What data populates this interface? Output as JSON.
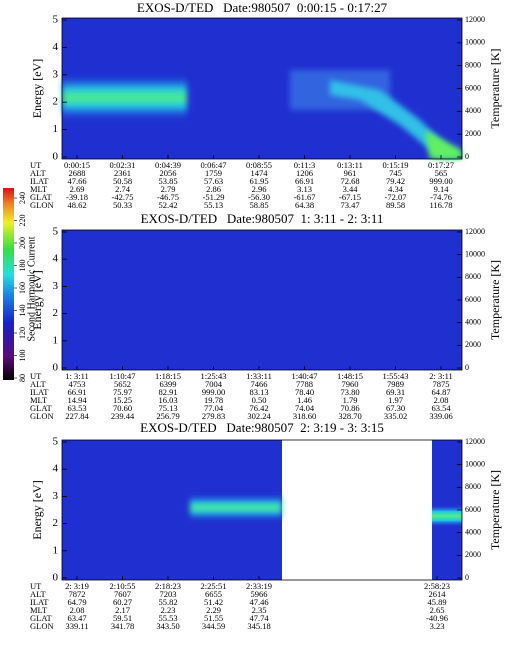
{
  "chart_data": [
    {
      "type": "spectrogram",
      "title": "EXOS-D/TED   Date:980507  0:00:15 - 0:17:27",
      "ylabel": "Energy [eV]",
      "y2label": "Temperature [K]",
      "ylim": [
        0,
        5
      ],
      "yticks": [
        0,
        1,
        2,
        3,
        4,
        5
      ],
      "y2lim": [
        0,
        12000
      ],
      "y2ticks": [
        0,
        2000,
        4000,
        6000,
        8000,
        10000,
        12000
      ],
      "table": {
        "row_labels": [
          "UT",
          "ALT",
          "ILAT",
          "MLT",
          "GLAT",
          "GLON"
        ],
        "columns": [
          [
            "0:00:15",
            "2688",
            "47.66",
            "2.69",
            "-39.18",
            "48.62"
          ],
          [
            "0:02:31",
            "2361",
            "50.58",
            "2.74",
            "-42.75",
            "50.33"
          ],
          [
            "0:04:39",
            "2056",
            "53.85",
            "2.79",
            "-46.75",
            "52.42"
          ],
          [
            "0:06:47",
            "1759",
            "57.63",
            "2.86",
            "-51.29",
            "55.13"
          ],
          [
            "0:08:55",
            "1474",
            "61.95",
            "2.96",
            "-56.30",
            "58.85"
          ],
          [
            "0:11:3",
            "1206",
            "66.91",
            "3.13",
            "-61.67",
            "64.38"
          ],
          [
            "0:13:11",
            "961",
            "72.68",
            "3.44",
            "-67.15",
            "73.47"
          ],
          [
            "0:15:19",
            "745",
            "79.42",
            "4.34",
            "-72.07",
            "89.58"
          ],
          [
            "0:17:27",
            "565",
            "999.00",
            "9.14",
            "-74.76",
            "116.78"
          ]
        ]
      }
    },
    {
      "type": "spectrogram",
      "title": "EXOS-D/TED   Date:980507  1: 3:11 - 2: 3:11",
      "ylabel": "Energy [eV]",
      "y2label": "Temperature [K]",
      "ylim": [
        0,
        5
      ],
      "yticks": [
        0,
        1,
        2,
        3,
        4,
        5
      ],
      "y2lim": [
        0,
        12000
      ],
      "y2ticks": [
        0,
        2000,
        4000,
        6000,
        8000,
        10000,
        12000
      ],
      "table": {
        "row_labels": [
          "UT",
          "ALT",
          "ILAT",
          "MLT",
          "GLAT",
          "GLON"
        ],
        "columns": [
          [
            "1: 3:11",
            "4753",
            "66.91",
            "14.94",
            "63.53",
            "227.84"
          ],
          [
            "1:10:47",
            "5652",
            "75.97",
            "15.25",
            "70.60",
            "239.44"
          ],
          [
            "1:18:15",
            "6399",
            "82.91",
            "16.03",
            "75.13",
            "256.79"
          ],
          [
            "1:25:43",
            "7004",
            "999.00",
            "19.78",
            "77.04",
            "279.83"
          ],
          [
            "1:33:11",
            "7466",
            "83.13",
            "0.50",
            "76.42",
            "302.24"
          ],
          [
            "1:40:47",
            "7788",
            "78.40",
            "1.46",
            "74.04",
            "318.60"
          ],
          [
            "1:48:15",
            "7960",
            "73.80",
            "1.79",
            "70.86",
            "328.70"
          ],
          [
            "1:55:43",
            "7989",
            "69.31",
            "1.97",
            "67.30",
            "335.02"
          ],
          [
            "2: 3:11",
            "7875",
            "64.87",
            "2.08",
            "63.54",
            "339.06"
          ]
        ]
      }
    },
    {
      "type": "spectrogram",
      "title": "EXOS-D/TED   Date:980507  2: 3:19 - 3: 3:15",
      "ylabel": "Energy [eV]",
      "y2label": "Temperature [K]",
      "ylim": [
        0,
        5
      ],
      "yticks": [
        0,
        1,
        2,
        3,
        4,
        5
      ],
      "y2lim": [
        0,
        12000
      ],
      "y2ticks": [
        0,
        2000,
        4000,
        6000,
        8000,
        10000,
        12000
      ],
      "table": {
        "row_labels": [
          "UT",
          "ALT",
          "ILAT",
          "MLT",
          "GLAT",
          "GLON"
        ],
        "columns": [
          [
            "2: 3:19",
            "7872",
            "64.79",
            "2.08",
            "63.47",
            "339.11"
          ],
          [
            "2:10:55",
            "7607",
            "60.27",
            "2.17",
            "59.51",
            "341.78"
          ],
          [
            "2:18:23",
            "7203",
            "55.82",
            "2.23",
            "55.53",
            "343.50"
          ],
          [
            "2:25:51",
            "6655",
            "51.42",
            "2.29",
            "51.55",
            "344.59"
          ],
          [
            "2:33:19",
            "5966",
            "47.46",
            "2.35",
            "47.74",
            "345.18"
          ],
          [
            "2:58:23",
            "2614",
            "45.89",
            "2.65",
            "-40.96",
            "3.23"
          ]
        ]
      }
    }
  ],
  "colorbar": {
    "label": "Second Harmonic Current",
    "lim": [
      80,
      240
    ],
    "ticks": [
      80,
      100,
      120,
      140,
      160,
      180,
      200,
      220,
      240
    ]
  }
}
